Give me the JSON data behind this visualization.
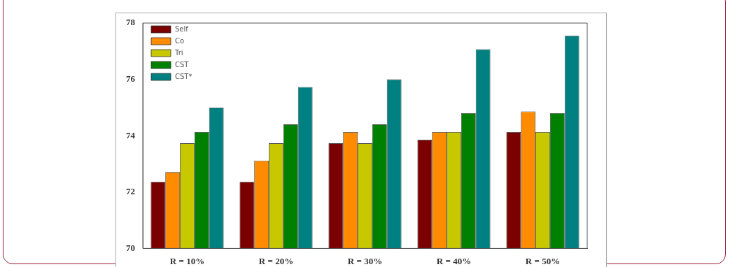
{
  "chart_data": {
    "type": "bar",
    "categories": [
      "R = 10%",
      "R = 20%",
      "R = 30%",
      "R = 40%",
      "R = 50%"
    ],
    "series": [
      {
        "name": "Self",
        "color": "#7b0000",
        "values": [
          72.36,
          72.36,
          73.73,
          73.86,
          74.13
        ]
      },
      {
        "name": "Co",
        "color": "#ff8c00",
        "values": [
          72.71,
          73.12,
          74.13,
          74.13,
          74.86
        ]
      },
      {
        "name": "Tri",
        "color": "#c8c800",
        "values": [
          73.73,
          73.73,
          73.73,
          74.13,
          74.13
        ]
      },
      {
        "name": "CST",
        "color": "#008000",
        "values": [
          74.13,
          74.4,
          74.4,
          74.8,
          74.8
        ]
      },
      {
        "name": "CST*",
        "color": "#008080",
        "values": [
          75.0,
          75.73,
          76.0,
          77.07,
          77.55
        ]
      }
    ],
    "ylim": [
      70,
      78
    ],
    "yticks": [
      70,
      72,
      74,
      76,
      78
    ],
    "grid": false,
    "legend": "top left"
  }
}
